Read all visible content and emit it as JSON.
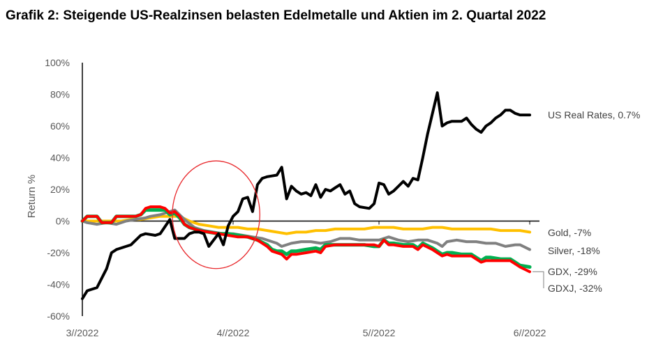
{
  "title": "Grafik 2: Steigende US-Realzinsen belasten Edelmetalle und Aktien im 2. Quartal 2022",
  "chart_data": {
    "type": "line",
    "title": "Grafik 2: Steigende US-Realzinsen belasten Edelmetalle und Aktien im 2. Quartal 2022",
    "xlabel": "",
    "ylabel": "Return %",
    "ylim": [
      -60,
      100
    ],
    "xlim": [
      0,
      94
    ],
    "x_unit": "days since 3/1/2022",
    "yticks": [
      100,
      80,
      60,
      40,
      20,
      0,
      -20,
      -40,
      -60
    ],
    "ytick_labels": [
      "100%",
      "80%",
      "60%",
      "40%",
      "20%",
      "0%",
      "-20%",
      "-40%",
      "-60%"
    ],
    "xticks": [
      0,
      31,
      61,
      92
    ],
    "xtick_labels": [
      "3//2022",
      "4//2022",
      "5//2022",
      "6//2022"
    ],
    "grid": false,
    "legend": "inline labels at right end of each series",
    "annotations": [
      {
        "type": "ellipse",
        "color": "#e8262a",
        "x_center": 27.5,
        "y_center": 4,
        "x_radius": 9,
        "y_radius": 34
      }
    ],
    "series": [
      {
        "name": "US Real Rates",
        "label": "US Real Rates, 0.7%",
        "color": "#000000",
        "x": [
          0,
          1,
          3,
          5,
          6,
          7,
          9,
          10,
          12,
          13,
          15,
          16,
          18,
          19,
          21,
          22,
          23,
          24,
          25,
          26,
          28,
          29,
          30,
          30.5,
          31,
          32,
          33,
          34,
          35,
          36,
          37,
          38,
          40,
          41,
          42,
          43,
          44,
          45,
          46,
          47,
          48,
          49,
          50,
          51,
          52,
          53,
          54,
          55,
          56,
          57,
          59,
          60,
          61,
          62,
          63,
          64,
          65,
          66,
          67,
          68,
          69,
          70,
          71,
          72,
          73,
          74,
          75,
          76,
          78,
          79,
          80,
          81,
          82,
          83,
          84,
          85,
          86,
          87,
          88,
          89,
          90,
          91,
          92
        ],
        "values": [
          -49,
          -44,
          -42,
          -30,
          -20,
          -18,
          -16,
          -15,
          -9,
          -8,
          -9,
          -8,
          1,
          -11,
          -11,
          -8,
          -7,
          -7,
          -8,
          -16,
          -8,
          -15,
          -3,
          0,
          3,
          6,
          14,
          15,
          6,
          23,
          27,
          28,
          29,
          34,
          14,
          22,
          19,
          17,
          18,
          16,
          23,
          15,
          20,
          19,
          21,
          23,
          17,
          19,
          11,
          9,
          8,
          11,
          24,
          23,
          17,
          19,
          22,
          25,
          22,
          27,
          26,
          40,
          55,
          68,
          81,
          60,
          62,
          63,
          63,
          65,
          61,
          58,
          56,
          60,
          62,
          65,
          67,
          70,
          70,
          68,
          67,
          67,
          67
        ]
      },
      {
        "name": "Gold",
        "label": "Gold, -7%",
        "color": "#ffc000",
        "x": [
          0,
          2,
          4,
          6,
          8,
          10,
          12,
          14,
          16,
          18,
          20,
          22,
          24,
          26,
          28,
          30,
          32,
          34,
          36,
          38,
          40,
          42,
          44,
          46,
          48,
          50,
          52,
          54,
          56,
          58,
          60,
          62,
          64,
          66,
          68,
          70,
          72,
          74,
          76,
          78,
          80,
          82,
          84,
          86,
          88,
          90,
          92
        ],
        "values": [
          0,
          0,
          0,
          0,
          0,
          1,
          1,
          2,
          3,
          3,
          3,
          0,
          -2,
          -3,
          -4,
          -4,
          -4,
          -5,
          -5,
          -6,
          -7,
          -8,
          -7,
          -7,
          -6,
          -6,
          -5,
          -5,
          -5,
          -5,
          -4,
          -4,
          -4,
          -5,
          -5,
          -5,
          -4,
          -4,
          -5,
          -5,
          -5,
          -5,
          -5,
          -6,
          -6,
          -6,
          -7
        ]
      },
      {
        "name": "Silver",
        "label": "Silver, -18%",
        "color": "#808080",
        "x": [
          0,
          1,
          3,
          5,
          7,
          9,
          11,
          13,
          14,
          16,
          18,
          19,
          21,
          23,
          25,
          27,
          29,
          31,
          33,
          35,
          37,
          39,
          40,
          41,
          43,
          45,
          47,
          49,
          51,
          53,
          55,
          57,
          59,
          61,
          62,
          63,
          65,
          67,
          69,
          71,
          73,
          74,
          75,
          77,
          79,
          81,
          83,
          85,
          87,
          89,
          90,
          92
        ],
        "values": [
          0,
          -1,
          -2,
          -1,
          -2,
          0,
          1,
          2,
          3,
          4,
          6,
          7,
          1,
          -4,
          -6,
          -7,
          -8,
          -8,
          -9,
          -10,
          -11,
          -13,
          -14,
          -16,
          -14,
          -13,
          -13,
          -14,
          -13,
          -11,
          -11,
          -12,
          -12,
          -12,
          -11,
          -10,
          -12,
          -13,
          -12,
          -12,
          -14,
          -16,
          -13,
          -12,
          -13,
          -13,
          -14,
          -14,
          -16,
          -15,
          -15,
          -18
        ]
      },
      {
        "name": "GDX",
        "label": "GDX, -29%",
        "color": "#00b050",
        "x": [
          0,
          1,
          2,
          3,
          4,
          5,
          6,
          7,
          8,
          9,
          10,
          11,
          12,
          13,
          14,
          15,
          16,
          17,
          18,
          19,
          20,
          21,
          22,
          24,
          26,
          28,
          30,
          32,
          34,
          36,
          38,
          39,
          40,
          41,
          42,
          43,
          44,
          46,
          48,
          49,
          50,
          52,
          54,
          56,
          58,
          60,
          61,
          62,
          63,
          64,
          66,
          68,
          69,
          70,
          72,
          74,
          75,
          76,
          78,
          80,
          81,
          82,
          83,
          84,
          86,
          88,
          89,
          90,
          92
        ],
        "values": [
          0,
          3,
          3,
          3,
          -1,
          -1,
          -1,
          3,
          3,
          3,
          3,
          3,
          4,
          7,
          7,
          7,
          7,
          7,
          4,
          5,
          2,
          -2,
          -4,
          -6,
          -7,
          -8,
          -8,
          -9,
          -10,
          -12,
          -15,
          -18,
          -19,
          -19,
          -21,
          -19,
          -19,
          -18,
          -17,
          -18,
          -15,
          -15,
          -15,
          -15,
          -15,
          -16,
          -16,
          -12,
          -14,
          -14,
          -15,
          -15,
          -17,
          -14,
          -17,
          -21,
          -20,
          -20,
          -21,
          -21,
          -23,
          -25,
          -23,
          -23,
          -24,
          -24,
          -26,
          -28,
          -29
        ]
      },
      {
        "name": "GDXJ",
        "label": "GDXJ, -32%",
        "color": "#ff0000",
        "x": [
          0,
          1,
          2,
          3,
          4,
          5,
          6,
          7,
          8,
          9,
          10,
          11,
          12,
          13,
          14,
          15,
          16,
          17,
          18,
          19,
          20,
          21,
          22,
          24,
          26,
          28,
          30,
          32,
          34,
          36,
          38,
          39,
          40,
          41,
          42,
          43,
          44,
          46,
          48,
          49,
          50,
          52,
          54,
          56,
          58,
          60,
          61,
          62,
          63,
          64,
          66,
          68,
          69,
          70,
          72,
          74,
          75,
          76,
          78,
          80,
          81,
          82,
          83,
          84,
          86,
          88,
          89,
          90,
          92
        ],
        "values": [
          0,
          3,
          3,
          3,
          -1,
          -1,
          -1,
          3,
          3,
          3,
          3,
          3,
          4,
          8,
          9,
          9,
          9,
          8,
          5,
          6,
          3,
          -2,
          -4,
          -6,
          -7,
          -8,
          -9,
          -10,
          -10,
          -12,
          -16,
          -19,
          -20,
          -21,
          -24,
          -21,
          -21,
          -20,
          -19,
          -20,
          -16,
          -15,
          -15,
          -15,
          -15,
          -15,
          -16,
          -12,
          -15,
          -15,
          -16,
          -16,
          -18,
          -15,
          -18,
          -22,
          -21,
          -22,
          -22,
          -22,
          -24,
          -26,
          -25,
          -25,
          -25,
          -25,
          -27,
          -29,
          -32
        ]
      }
    ]
  }
}
